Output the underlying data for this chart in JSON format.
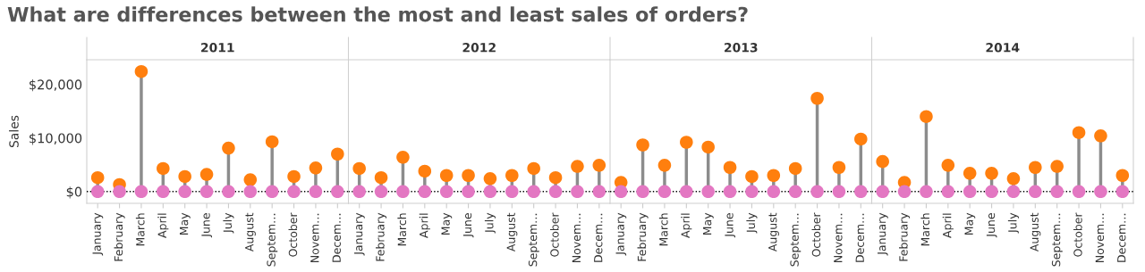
{
  "chart_data": [
    {
      "type": "lollipop",
      "title": "What are differences between the most and least sales of orders?",
      "subtitle": "2011",
      "ylabel": "Sales",
      "categories": [
        "January",
        "February",
        "March",
        "April",
        "May",
        "June",
        "July",
        "August",
        "Septem…",
        "October",
        "Novem…",
        "Decem…"
      ],
      "series": [
        {
          "color": "#ff7f0e",
          "values": [
            2600,
            1300,
            22400,
            4300,
            2800,
            3200,
            8100,
            2200,
            9300,
            2800,
            4400,
            7000
          ]
        },
        {
          "type": "scatter",
          "color": "#e377c2",
          "values": [
            0,
            0,
            0,
            0,
            0,
            0,
            0,
            0,
            0,
            0,
            0,
            0
          ]
        }
      ],
      "ylim": [
        -2200,
        24600
      ],
      "yticks": [
        {
          "value": 0,
          "label": "$0"
        },
        {
          "value": 10000,
          "label": "$10,000"
        },
        {
          "value": 20000,
          "label": "$20,000"
        }
      ],
      "ref_lines": [
        {
          "axis": "y",
          "value": 0,
          "color": "#000000",
          "line_style": "dotted"
        }
      ],
      "marker": "circle"
    },
    {
      "type": "lollipop",
      "subtitle": "2012",
      "categories": [
        "January",
        "February",
        "March",
        "April",
        "May",
        "June",
        "July",
        "August",
        "Septem…",
        "October",
        "Novem…",
        "Decem…"
      ],
      "series": [
        {
          "color": "#ff7f0e",
          "values": [
            4300,
            2600,
            6400,
            3800,
            3000,
            3000,
            2400,
            3000,
            4300,
            2600,
            4700,
            4900
          ]
        },
        {
          "type": "scatter",
          "color": "#e377c2",
          "values": [
            0,
            0,
            0,
            0,
            0,
            0,
            0,
            0,
            0,
            0,
            0,
            0
          ]
        }
      ],
      "ylim": [
        -2200,
        24600
      ],
      "tick_labels": "x",
      "ref_lines": [
        {
          "axis": "y",
          "value": 0,
          "color": "#000000",
          "line_style": "dotted"
        }
      ],
      "marker": "circle"
    },
    {
      "type": "lollipop",
      "subtitle": "2013",
      "categories": [
        "January",
        "February",
        "March",
        "April",
        "May",
        "June",
        "July",
        "August",
        "Septem…",
        "October",
        "Novem…",
        "Decem…"
      ],
      "series": [
        {
          "color": "#ff7f0e",
          "values": [
            1700,
            8700,
            4900,
            9200,
            8300,
            4500,
            2800,
            3000,
            4300,
            17400,
            4500,
            9800
          ]
        },
        {
          "type": "scatter",
          "color": "#e377c2",
          "values": [
            0,
            0,
            0,
            0,
            0,
            0,
            0,
            0,
            0,
            0,
            0,
            0
          ]
        }
      ],
      "ylim": [
        -2200,
        24600
      ],
      "tick_labels": "x",
      "ref_lines": [
        {
          "axis": "y",
          "value": 0,
          "color": "#000000",
          "line_style": "dotted"
        }
      ],
      "marker": "circle"
    },
    {
      "type": "lollipop",
      "subtitle": "2014",
      "categories": [
        "January",
        "February",
        "March",
        "April",
        "May",
        "June",
        "July",
        "August",
        "Septem…",
        "October",
        "Novem…",
        "Decem…"
      ],
      "series": [
        {
          "color": "#ff7f0e",
          "values": [
            5600,
            1700,
            14000,
            4900,
            3400,
            3400,
            2400,
            4500,
            4700,
            11000,
            10400,
            3000
          ]
        },
        {
          "type": "scatter",
          "color": "#e377c2",
          "values": [
            0,
            0,
            0,
            0,
            0,
            0,
            0,
            0,
            0,
            0,
            0,
            0
          ]
        }
      ],
      "ylim": [
        -2200,
        24600
      ],
      "tick_labels": "x",
      "ref_lines": [
        {
          "axis": "y",
          "value": 0,
          "color": "#000000",
          "line_style": "dotted"
        }
      ],
      "marker": "circle"
    }
  ]
}
